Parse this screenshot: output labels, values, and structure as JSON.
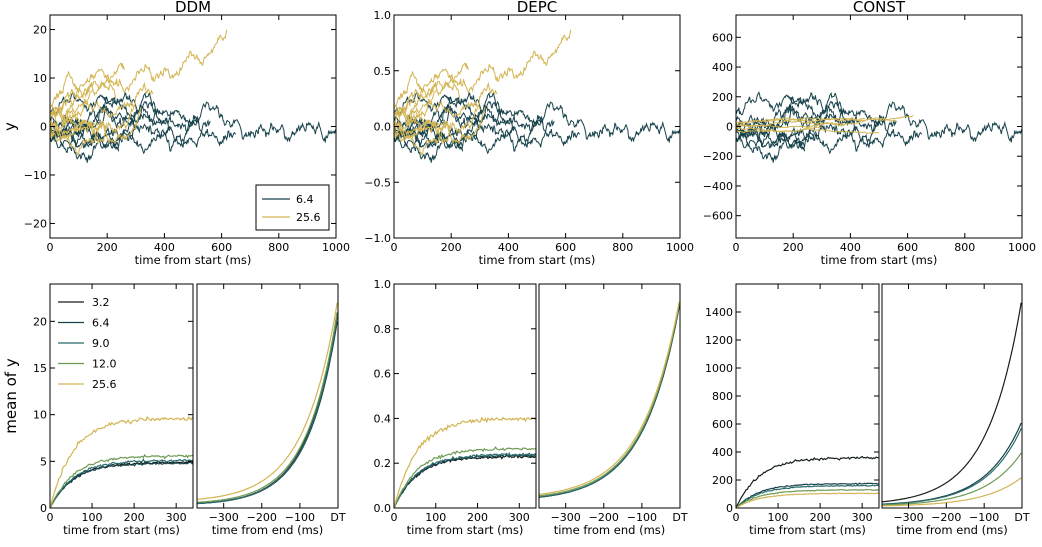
{
  "colors": {
    "s3_2": "#161f1c",
    "s6_4": "#17424b",
    "s9_0": "#296b6a",
    "s12_0": "#6e9a52",
    "s25_6": "#d3b553"
  },
  "chart_data": [
    {
      "id": "ddm-traces",
      "type": "line",
      "title": "DDM",
      "xlabel": "time from start (ms)",
      "ylabel": "y",
      "xlim": [
        0,
        1000
      ],
      "ylim": [
        -23,
        23
      ],
      "xticks": [
        0,
        200,
        400,
        600,
        800,
        1000
      ],
      "yticks": [
        -20,
        -10,
        0,
        10,
        20
      ],
      "ytick_labels": [
        "−20",
        "−10",
        "0",
        "10",
        "20"
      ],
      "legend": {
        "position": "lower-right",
        "entries": [
          {
            "label": "6.4",
            "color": "s6_4"
          },
          {
            "label": "25.6",
            "color": "s25_6"
          }
        ]
      },
      "series": [
        {
          "name": "6.4",
          "color": "s6_4",
          "trials": 8,
          "seed": 11,
          "amp": 23,
          "drift": 0.008,
          "noise": 0.85,
          "tmin": 150,
          "tmax": 1000,
          "ends": [
            650,
            1000,
            560,
            420,
            300,
            240,
            380,
            520
          ]
        },
        {
          "name": "25.6",
          "color": "s25_6",
          "trials": 10,
          "seed": 29,
          "amp": 23,
          "drift": 0.03,
          "noise": 0.8,
          "tmin": 60,
          "tmax": 620,
          "ends": [
            620,
            260,
            180,
            150,
            360,
            300,
            230,
            120,
            200,
            320
          ]
        }
      ]
    },
    {
      "id": "depc-traces",
      "type": "line",
      "title": "DEPC",
      "xlabel": "time from start (ms)",
      "ylabel": "",
      "xlim": [
        0,
        1000
      ],
      "ylim": [
        -1.0,
        1.0
      ],
      "xticks": [
        0,
        200,
        400,
        600,
        800,
        1000
      ],
      "yticks": [
        -1.0,
        -0.5,
        0.0,
        0.5,
        1.0
      ],
      "ytick_labels": [
        "−1.0",
        "−0.5",
        "0.0",
        "0.5",
        "1.0"
      ],
      "series": [
        {
          "name": "6.4",
          "color": "s6_4",
          "trials": 8,
          "seed": 11,
          "amp": 1.0,
          "drift": 0.008,
          "noise": 0.85,
          "tmin": 150,
          "tmax": 1000,
          "ends": [
            650,
            1000,
            560,
            420,
            300,
            240,
            380,
            520
          ]
        },
        {
          "name": "25.6",
          "color": "s25_6",
          "trials": 10,
          "seed": 29,
          "amp": 1.0,
          "drift": 0.03,
          "noise": 0.8,
          "tmin": 60,
          "tmax": 620,
          "ends": [
            620,
            260,
            180,
            150,
            360,
            300,
            230,
            120,
            200,
            320
          ]
        }
      ]
    },
    {
      "id": "const-traces",
      "type": "line",
      "title": "CONST",
      "xlabel": "time from start (ms)",
      "ylabel": "",
      "xlim": [
        0,
        1000
      ],
      "ylim": [
        -750,
        750
      ],
      "xticks": [
        0,
        200,
        400,
        600,
        800,
        1000
      ],
      "yticks": [
        -600,
        -400,
        -200,
        0,
        200,
        400,
        600
      ],
      "ytick_labels": [
        "−600",
        "−400",
        "−200",
        "0",
        "200",
        "400",
        "600"
      ],
      "series": [
        {
          "name": "6.4",
          "color": "s6_4",
          "trials": 8,
          "seed": 11,
          "amp": 750,
          "drift": 0.008,
          "noise": 0.85,
          "tmin": 150,
          "tmax": 1000,
          "ends": [
            650,
            1000,
            560,
            420,
            300,
            240,
            380,
            520
          ]
        },
        {
          "name": "25.6",
          "color": "s25_6",
          "trials": 6,
          "seed": 29,
          "amp": 220,
          "drift": 0.004,
          "noise": 0.35,
          "tmin": 60,
          "tmax": 620,
          "ends": [
            620,
            450,
            560,
            380,
            500,
            300
          ]
        }
      ]
    },
    {
      "id": "ddm-mean-start",
      "type": "line",
      "title": "",
      "xlabel": "time from start (ms)",
      "ylabel": "mean of y",
      "xlim": [
        0,
        340
      ],
      "ylim": [
        0,
        24
      ],
      "xticks": [
        0,
        100,
        200,
        300
      ],
      "yticks": [
        0,
        5,
        10,
        15,
        20
      ],
      "legend": {
        "position": "top-left",
        "entries": [
          {
            "label": "3.2",
            "color": "s3_2"
          },
          {
            "label": "6.4",
            "color": "s6_4"
          },
          {
            "label": "9.0",
            "color": "s9_0"
          },
          {
            "label": "12.0",
            "color": "s12_0"
          },
          {
            "label": "25.6",
            "color": "s25_6"
          }
        ]
      },
      "series": [
        {
          "name": "3.2",
          "color": "s3_2",
          "plateau": 4.9,
          "tau": 55
        },
        {
          "name": "6.4",
          "color": "s6_4",
          "plateau": 4.8,
          "tau": 55
        },
        {
          "name": "9.0",
          "color": "s9_0",
          "plateau": 5.1,
          "tau": 55
        },
        {
          "name": "12.0",
          "color": "s12_0",
          "plateau": 5.6,
          "tau": 55
        },
        {
          "name": "25.6",
          "color": "s25_6",
          "plateau": 9.6,
          "tau": 55
        }
      ]
    },
    {
      "id": "ddm-mean-end",
      "type": "line",
      "title": "",
      "xlabel": "time from end (ms)",
      "ylabel": "",
      "xlim": [
        -370,
        0
      ],
      "ylim": [
        0,
        24
      ],
      "xticks": [
        -300,
        -200,
        -100,
        0
      ],
      "xtick_labels": [
        "−300",
        "−200",
        "−100",
        "DT"
      ],
      "yticks": [],
      "series": [
        {
          "name": "3.2",
          "color": "s3_2",
          "end": 21.5,
          "base": 0.3,
          "tau": 78
        },
        {
          "name": "6.4",
          "color": "s6_4",
          "end": 20.5,
          "base": 0.3,
          "tau": 78
        },
        {
          "name": "9.0",
          "color": "s9_0",
          "end": 21.0,
          "base": 0.3,
          "tau": 78
        },
        {
          "name": "12.0",
          "color": "s12_0",
          "end": 21.5,
          "base": 0.4,
          "tau": 80
        },
        {
          "name": "25.6",
          "color": "s25_6",
          "end": 22.5,
          "base": 0.6,
          "tau": 88
        }
      ]
    },
    {
      "id": "depc-mean-start",
      "type": "line",
      "title": "",
      "xlabel": "time from start (ms)",
      "ylabel": "",
      "xlim": [
        0,
        340
      ],
      "ylim": [
        0,
        1.0
      ],
      "xticks": [
        0,
        100,
        200,
        300
      ],
      "yticks": [
        0.0,
        0.2,
        0.4,
        0.6,
        0.8,
        1.0
      ],
      "ytick_labels": [
        "0.0",
        "0.2",
        "0.4",
        "0.6",
        "0.8",
        "1.0"
      ],
      "series": [
        {
          "name": "3.2",
          "color": "s3_2",
          "plateau": 0.23,
          "tau": 55
        },
        {
          "name": "6.4",
          "color": "s6_4",
          "plateau": 0.235,
          "tau": 55
        },
        {
          "name": "9.0",
          "color": "s9_0",
          "plateau": 0.24,
          "tau": 55
        },
        {
          "name": "12.0",
          "color": "s12_0",
          "plateau": 0.265,
          "tau": 55
        },
        {
          "name": "25.6",
          "color": "s25_6",
          "plateau": 0.4,
          "tau": 55
        }
      ]
    },
    {
      "id": "depc-mean-end",
      "type": "line",
      "title": "",
      "xlabel": "time from end (ms)",
      "ylabel": "",
      "xlim": [
        -370,
        0
      ],
      "ylim": [
        0,
        1.0
      ],
      "xticks": [
        -300,
        -200,
        -100,
        0
      ],
      "xtick_labels": [
        "−300",
        "−200",
        "−100",
        "DT"
      ],
      "yticks": [],
      "series": [
        {
          "name": "3.2",
          "color": "s3_2",
          "end": 0.92,
          "base": 0.03,
          "tau": 95
        },
        {
          "name": "6.4",
          "color": "s6_4",
          "end": 0.92,
          "base": 0.03,
          "tau": 95
        },
        {
          "name": "9.0",
          "color": "s9_0",
          "end": 0.93,
          "base": 0.03,
          "tau": 95
        },
        {
          "name": "12.0",
          "color": "s12_0",
          "end": 0.93,
          "base": 0.035,
          "tau": 96
        },
        {
          "name": "25.6",
          "color": "s25_6",
          "end": 0.94,
          "base": 0.04,
          "tau": 98
        }
      ]
    },
    {
      "id": "const-mean-start",
      "type": "line",
      "title": "",
      "xlabel": "time from start (ms)",
      "ylabel": "",
      "xlim": [
        0,
        340
      ],
      "ylim": [
        0,
        1600
      ],
      "xticks": [
        0,
        100,
        200,
        300
      ],
      "yticks": [
        0,
        200,
        400,
        600,
        800,
        1000,
        1200,
        1400
      ],
      "series": [
        {
          "name": "3.2",
          "color": "s3_2",
          "plateau": 360,
          "tau": 55
        },
        {
          "name": "6.4",
          "color": "s6_4",
          "plateau": 175,
          "tau": 55
        },
        {
          "name": "9.0",
          "color": "s9_0",
          "plateau": 160,
          "tau": 55
        },
        {
          "name": "12.0",
          "color": "s12_0",
          "plateau": 130,
          "tau": 55
        },
        {
          "name": "25.6",
          "color": "s25_6",
          "plateau": 105,
          "tau": 55
        }
      ]
    },
    {
      "id": "const-mean-end",
      "type": "line",
      "title": "",
      "xlabel": "time from end (ms)",
      "ylabel": "",
      "xlim": [
        -370,
        0
      ],
      "ylim": [
        0,
        1600
      ],
      "xticks": [
        -300,
        -200,
        -100,
        0
      ],
      "xtick_labels": [
        "−300",
        "−200",
        "−100",
        "DT"
      ],
      "yticks": [],
      "series": [
        {
          "name": "3.2",
          "color": "s3_2",
          "end": 1500,
          "base": 20,
          "tau": 90
        },
        {
          "name": "6.4",
          "color": "s6_4",
          "end": 620,
          "base": 15,
          "tau": 95
        },
        {
          "name": "9.0",
          "color": "s9_0",
          "end": 580,
          "base": 15,
          "tau": 95
        },
        {
          "name": "12.0",
          "color": "s12_0",
          "end": 400,
          "base": 12,
          "tau": 98
        },
        {
          "name": "25.6",
          "color": "s25_6",
          "end": 220,
          "base": 10,
          "tau": 100
        }
      ]
    }
  ]
}
